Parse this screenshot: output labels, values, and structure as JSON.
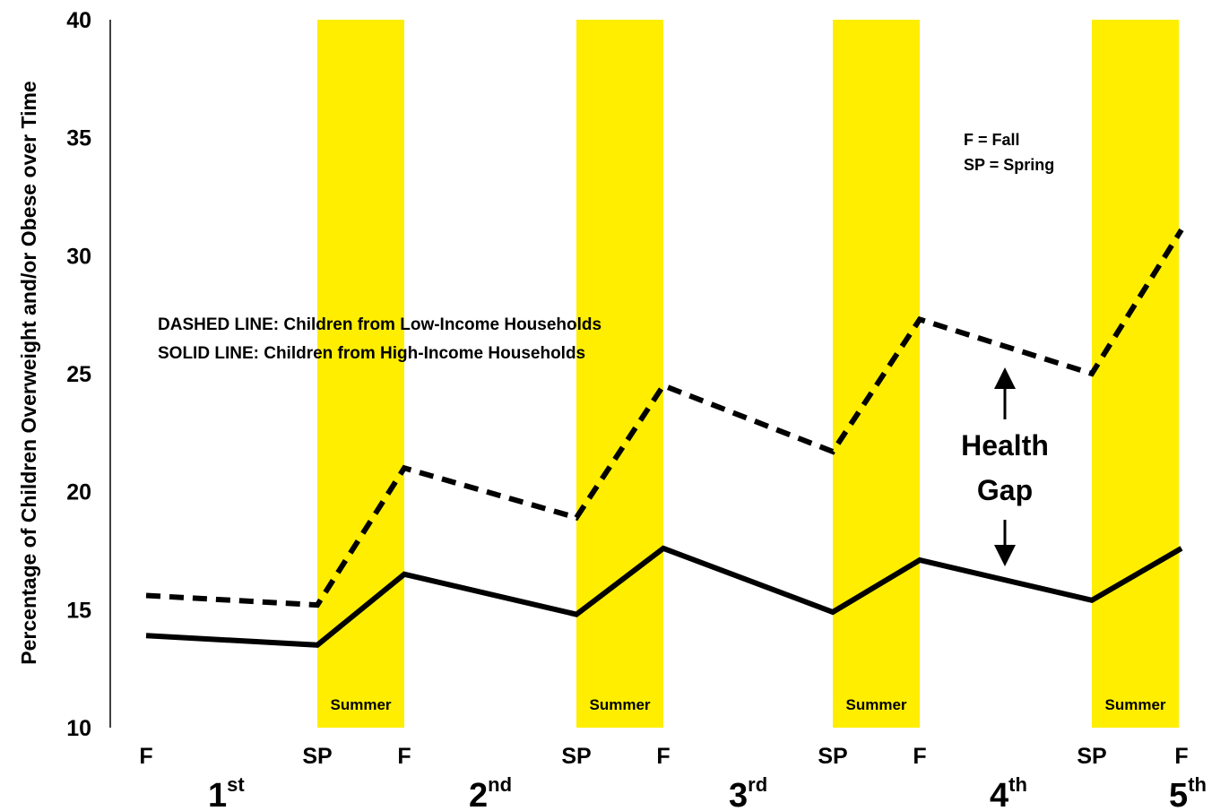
{
  "chart_data": {
    "type": "line",
    "ylabel": "Percentage of Children Overweight and/or Obese over Time",
    "ylim": [
      10,
      40
    ],
    "yticks": [
      "10",
      "15",
      "20",
      "25",
      "30",
      "35",
      "40"
    ],
    "x": [
      "F",
      "SP",
      "F",
      "SP",
      "F",
      "SP",
      "F",
      "SP",
      "F"
    ],
    "grades": [
      {
        "base": "1",
        "sup": "st"
      },
      {
        "base": "2",
        "sup": "nd"
      },
      {
        "base": "3",
        "sup": "rd"
      },
      {
        "base": "4",
        "sup": "th"
      },
      {
        "base": "5",
        "sup": "th"
      }
    ],
    "series": [
      {
        "style": "dashed",
        "color": "#000000",
        "values": [
          15.6,
          15.2,
          21.0,
          18.9,
          24.5,
          21.7,
          27.3,
          25.0,
          31.1
        ]
      },
      {
        "style": "solid",
        "color": "#000000",
        "values": [
          13.9,
          13.5,
          16.5,
          14.8,
          17.6,
          14.9,
          17.1,
          15.4,
          17.6
        ]
      }
    ],
    "shaded_bands": {
      "label": "Summer",
      "color": "#ffee00",
      "between": [
        [
          1,
          2
        ],
        [
          3,
          4
        ],
        [
          5,
          6
        ],
        [
          7,
          8
        ]
      ]
    },
    "notes": {
      "line1": "F = Fall",
      "line2": "SP = Spring"
    },
    "legend_text": {
      "dashed": "DASHED LINE: Children from Low-Income Households",
      "solid": "SOLID LINE: Children from High-Income Households"
    },
    "annotation": {
      "line1": "Health",
      "line2": "Gap"
    }
  }
}
